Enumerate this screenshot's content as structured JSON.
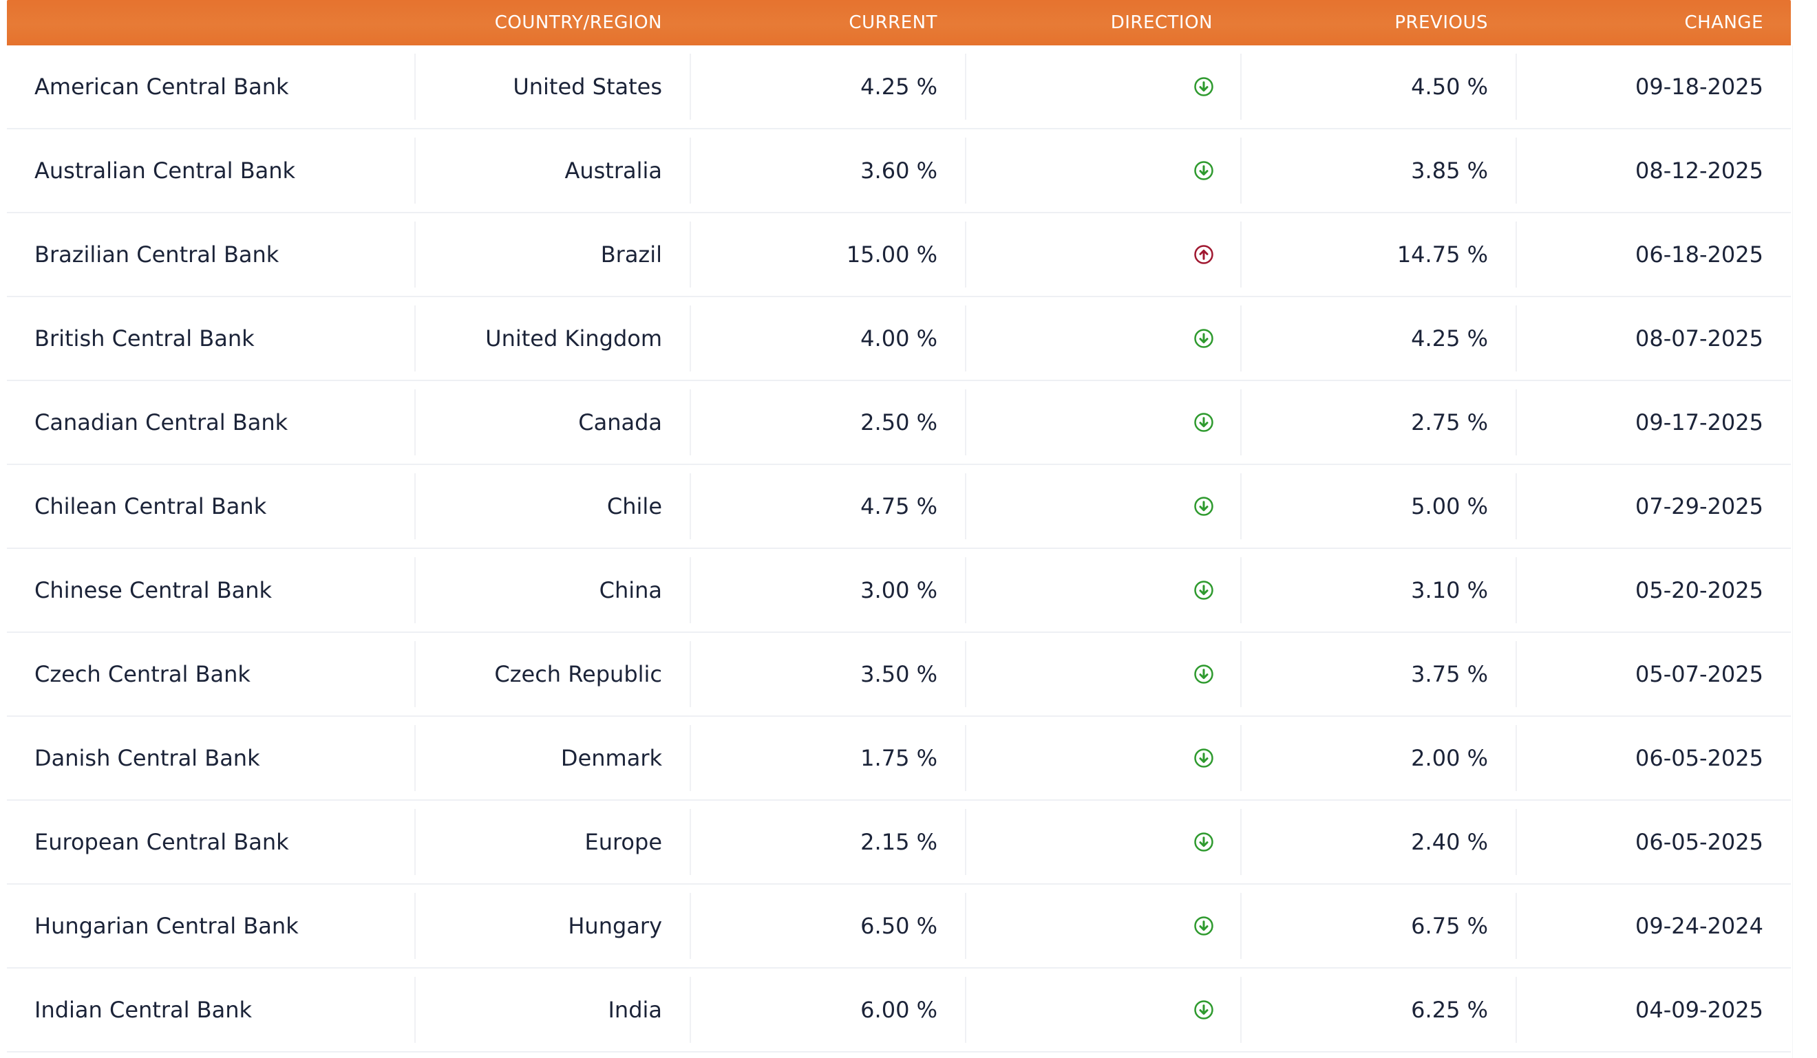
{
  "table": {
    "columns": [
      {
        "key": "bank",
        "label": ""
      },
      {
        "key": "country",
        "label": "COUNTRY/REGION"
      },
      {
        "key": "current",
        "label": "CURRENT"
      },
      {
        "key": "direction",
        "label": "DIRECTION"
      },
      {
        "key": "previous",
        "label": "PREVIOUS"
      },
      {
        "key": "change",
        "label": "CHANGE"
      }
    ],
    "colors": {
      "header_bg": "#e6732f",
      "down": "#2e9a2e",
      "up": "#a01830"
    },
    "rows": [
      {
        "bank": "American Central Bank",
        "country": "United States",
        "current": "4.25 %",
        "direction": "down-arrow-icon",
        "previous": "4.50 %",
        "change": "09-18-2025"
      },
      {
        "bank": "Australian Central Bank",
        "country": "Australia",
        "current": "3.60 %",
        "direction": "down-arrow-icon",
        "previous": "3.85 %",
        "change": "08-12-2025"
      },
      {
        "bank": "Brazilian Central Bank",
        "country": "Brazil",
        "current": "15.00 %",
        "direction": "up-arrow-icon",
        "previous": "14.75 %",
        "change": "06-18-2025"
      },
      {
        "bank": "British Central Bank",
        "country": "United Kingdom",
        "current": "4.00 %",
        "direction": "down-arrow-icon",
        "previous": "4.25 %",
        "change": "08-07-2025"
      },
      {
        "bank": "Canadian Central Bank",
        "country": "Canada",
        "current": "2.50 %",
        "direction": "down-arrow-icon",
        "previous": "2.75 %",
        "change": "09-17-2025"
      },
      {
        "bank": "Chilean Central Bank",
        "country": "Chile",
        "current": "4.75 %",
        "direction": "down-arrow-icon",
        "previous": "5.00 %",
        "change": "07-29-2025"
      },
      {
        "bank": "Chinese Central Bank",
        "country": "China",
        "current": "3.00 %",
        "direction": "down-arrow-icon",
        "previous": "3.10 %",
        "change": "05-20-2025"
      },
      {
        "bank": "Czech Central Bank",
        "country": "Czech Republic",
        "current": "3.50 %",
        "direction": "down-arrow-icon",
        "previous": "3.75 %",
        "change": "05-07-2025"
      },
      {
        "bank": "Danish Central Bank",
        "country": "Denmark",
        "current": "1.75 %",
        "direction": "down-arrow-icon",
        "previous": "2.00 %",
        "change": "06-05-2025"
      },
      {
        "bank": "European Central Bank",
        "country": "Europe",
        "current": "2.15 %",
        "direction": "down-arrow-icon",
        "previous": "2.40 %",
        "change": "06-05-2025"
      },
      {
        "bank": "Hungarian Central Bank",
        "country": "Hungary",
        "current": "6.50 %",
        "direction": "down-arrow-icon",
        "previous": "6.75 %",
        "change": "09-24-2024"
      },
      {
        "bank": "Indian Central Bank",
        "country": "India",
        "current": "6.00 %",
        "direction": "down-arrow-icon",
        "previous": "6.25 %",
        "change": "04-09-2025"
      }
    ]
  }
}
